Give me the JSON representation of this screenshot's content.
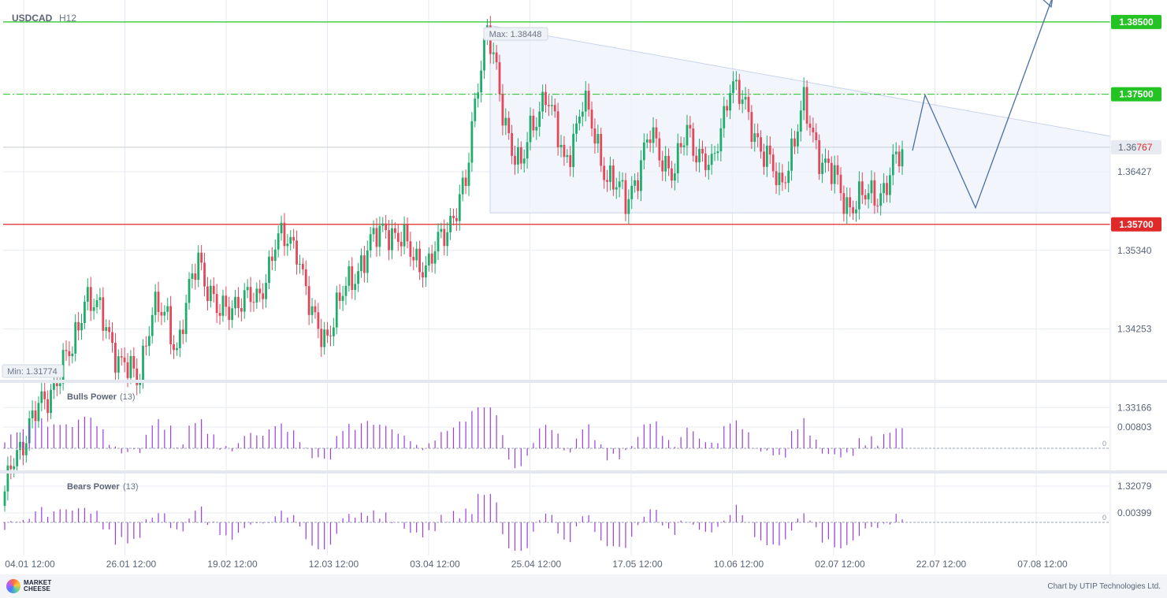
{
  "header": {
    "symbol": "USDCAD",
    "timeframe": "H12"
  },
  "chart_data": {
    "type": "candlestick",
    "symbol": "USDCAD",
    "timeframe": "H12",
    "x_ticks": [
      "04.01 12:00",
      "26.01 12:00",
      "19.02 12:00",
      "12.03 12:00",
      "03.04 12:00",
      "25.04 12:00",
      "17.05 12:00",
      "10.06 12:00",
      "02.07 12:00",
      "22.07 12:00",
      "07.08 12:00"
    ],
    "y_ticks": [
      "1.36427",
      "1.35340",
      "1.34253",
      "1.33166",
      "1.32079"
    ],
    "y_tick_values": [
      1.36427,
      1.3534,
      1.34253,
      1.33166,
      1.32079
    ],
    "max_label": "Max: 1.38448",
    "min_label": "Min: 1.31774",
    "current_price": {
      "label_main": "1.36",
      "label_accent": "767",
      "value": 1.36767
    },
    "levels": [
      {
        "label": "1.38500",
        "value": 1.385,
        "style": "solid",
        "color": "#22c322"
      },
      {
        "label": "1.37500",
        "value": 1.375,
        "style": "dash-dot",
        "color": "#22c322"
      },
      {
        "label": "1.35700",
        "value": 1.357,
        "style": "solid",
        "color": "#e02a2a"
      }
    ],
    "colors": {
      "up": "#1fad6b",
      "down": "#e4475a",
      "indicator": "#9a3ee0",
      "forecast": "#4a6fa5",
      "grid": "#e6eaf2"
    },
    "triangle_pattern": {
      "start_tick": "25.04 12:00",
      "upper_from": 1.3845,
      "upper_to": 1.3692,
      "lower": 1.3586
    },
    "forecast_path": [
      1.3672,
      1.3749,
      1.3593,
      1.3885
    ],
    "indicators": [
      {
        "name": "Bulls Power",
        "period": "(13)",
        "tick_label": "0.00803",
        "zero_label": "0"
      },
      {
        "name": "Bears Power",
        "period": "(13)",
        "tick_label": "0.00399",
        "zero_label": "0"
      }
    ]
  },
  "footer": {
    "brand_line1": "MARKET",
    "brand_line2": "CHEESE",
    "credit": "Chart by UTIP Technologies Ltd."
  }
}
